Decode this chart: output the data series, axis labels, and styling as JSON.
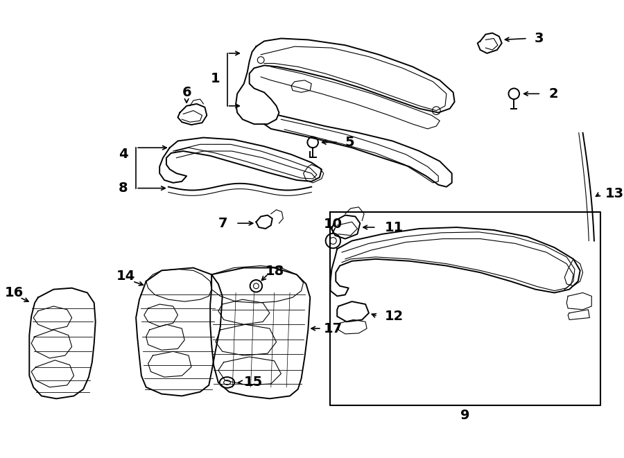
{
  "bg_color": "#ffffff",
  "line_color": "#000000",
  "label_fontsize": 14,
  "fig_width": 9.0,
  "fig_height": 6.61,
  "dpi": 100
}
